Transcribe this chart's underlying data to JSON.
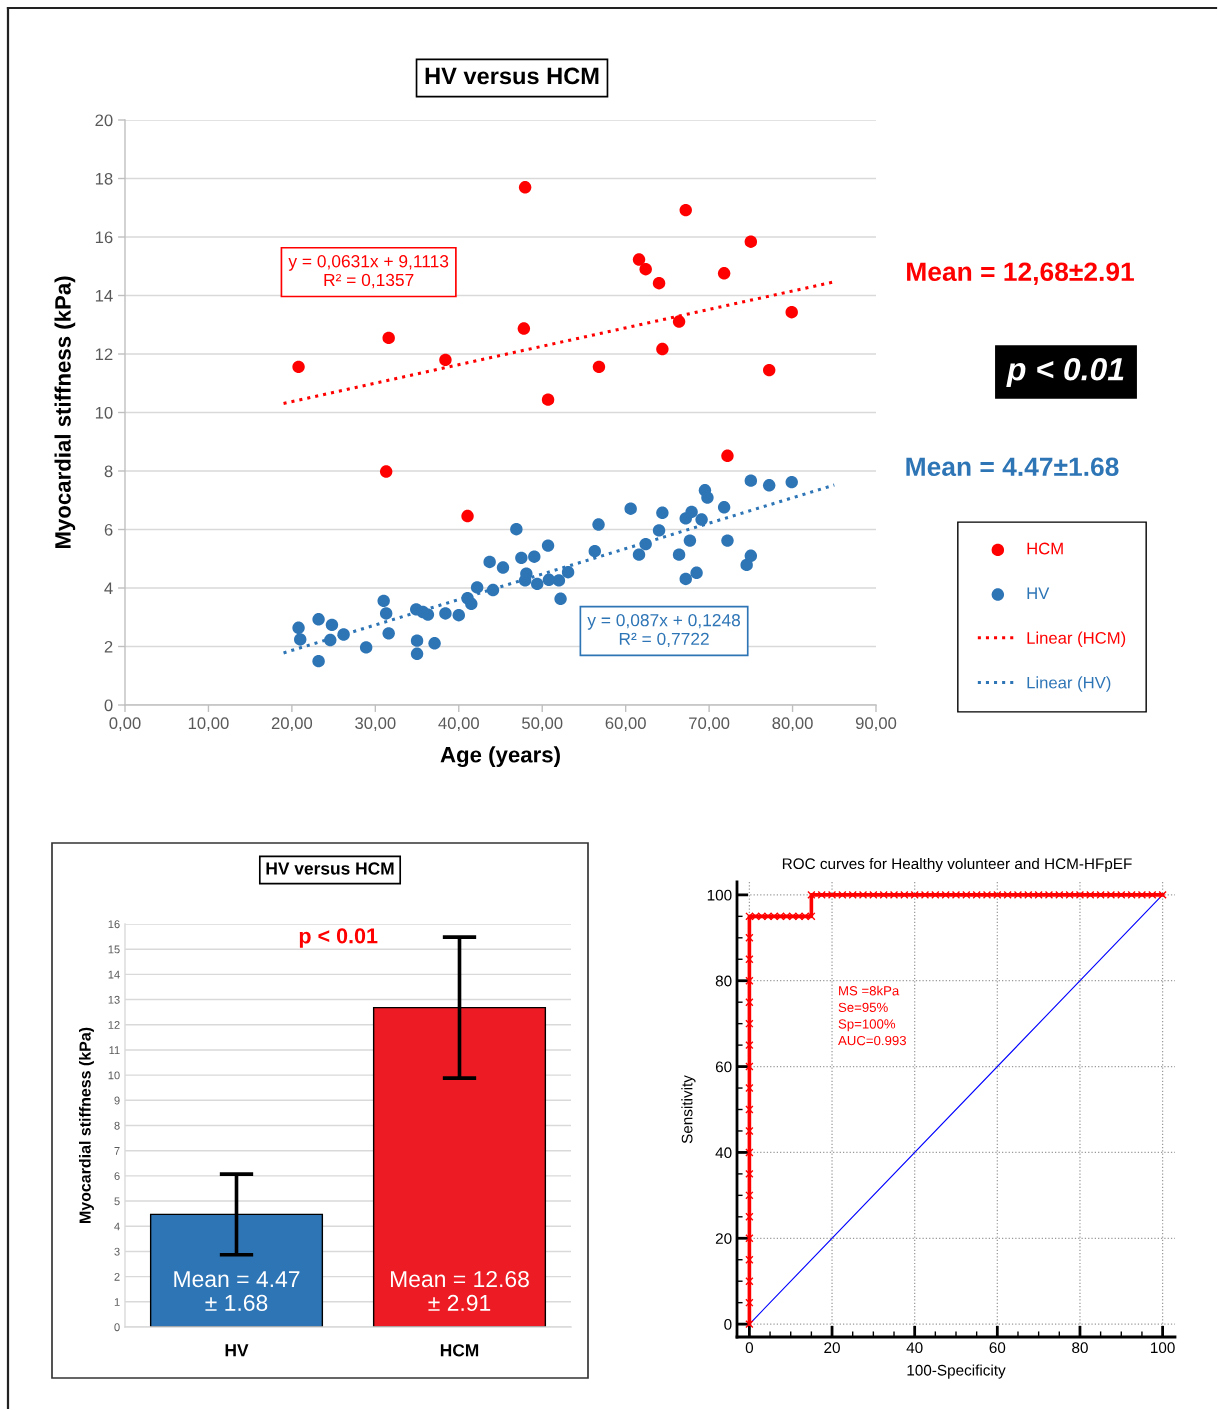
{
  "chart_data": [
    {
      "type": "scatter",
      "title": "HV versus HCM",
      "xlabel": "Age (years)",
      "ylabel": "Myocardial stiffness (kPa)",
      "series": [
        {
          "name": "HCM",
          "type": "scatter",
          "color": "#ff0000",
          "marker": "circle",
          "x": [
            20.8,
            31.6,
            38.4,
            47.95,
            47.8,
            50.7,
            56.8,
            61.6,
            62.4,
            64.0,
            64.4,
            66.4,
            67.2,
            71.8,
            75.0,
            77.2,
            79.9,
            31.3,
            41.05,
            72.2
          ],
          "values": [
            11.56,
            12.55,
            11.8,
            17.7,
            12.87,
            10.44,
            11.56,
            15.23,
            14.9,
            14.42,
            12.17,
            13.11,
            16.92,
            14.76,
            15.84,
            11.45,
            13.43,
            7.98,
            6.46,
            8.52
          ]
        },
        {
          "name": "HV",
          "type": "scatter",
          "color": "#2e75b6",
          "marker": "circle",
          "x": [
            20.8,
            21.0,
            23.2,
            23.2,
            24.6,
            24.8,
            26.2,
            28.9,
            31.0,
            31.3,
            31.6,
            34.9,
            35.0,
            35.0,
            35.7,
            36.3,
            37.1,
            38.4,
            40.0,
            41.05,
            41.5,
            42.2,
            43.7,
            44.1,
            45.3,
            46.9,
            47.5,
            47.95,
            48.1,
            49.05,
            49.4,
            50.7,
            50.8,
            52.0,
            52.2,
            53.1,
            56.3,
            56.75,
            60.6,
            61.6,
            62.4,
            64.0,
            64.4,
            66.4,
            67.2,
            67.2,
            67.7,
            67.9,
            68.5,
            69.1,
            69.5,
            69.8,
            71.8,
            72.2,
            74.5,
            75.0,
            75.0,
            77.2,
            79.9
          ],
          "values": [
            2.64,
            2.24,
            2.93,
            1.5,
            2.22,
            2.74,
            2.41,
            1.97,
            3.56,
            3.13,
            2.45,
            3.27,
            2.2,
            1.75,
            3.18,
            3.09,
            2.11,
            3.13,
            3.07,
            3.65,
            3.46,
            4.02,
            4.89,
            3.93,
            4.7,
            6.01,
            5.03,
            4.26,
            4.49,
            5.07,
            4.14,
            5.45,
            4.28,
            4.26,
            3.63,
            4.54,
            5.26,
            6.17,
            6.71,
            5.14,
            5.5,
            5.97,
            6.57,
            5.14,
            4.31,
            6.38,
            5.62,
            6.6,
            4.52,
            6.34,
            7.34,
            7.09,
            6.76,
            5.62,
            4.79,
            5.1,
            7.67,
            7.51,
            7.62
          ]
        },
        {
          "name": "Linear (HCM)",
          "type": "line",
          "color": "#ff0000",
          "line_style": "dotted",
          "marker": "none",
          "x": [
            19,
            85
          ],
          "values": [
            10.31,
            14.47
          ]
        },
        {
          "name": "Linear (HV)",
          "type": "line",
          "color": "#2e75b6",
          "line_style": "dotted",
          "marker": "none",
          "x": [
            19,
            85
          ],
          "values": [
            1.78,
            7.52
          ]
        }
      ],
      "xlim": [
        0,
        90
      ],
      "xticks": [
        {
          "value": 0,
          "label": "0,00"
        },
        {
          "value": 10,
          "label": "10,00"
        },
        {
          "value": 20,
          "label": "20,00"
        },
        {
          "value": 30,
          "label": "30,00"
        },
        {
          "value": 40,
          "label": "40,00"
        },
        {
          "value": 50,
          "label": "50,00"
        },
        {
          "value": 60,
          "label": "60,00"
        },
        {
          "value": 70,
          "label": "70,00"
        },
        {
          "value": 80,
          "label": "80,00"
        },
        {
          "value": 90,
          "label": "90,00"
        }
      ],
      "ylim": [
        0,
        20
      ],
      "yticks": [
        0,
        2,
        4,
        6,
        8,
        10,
        12,
        14,
        16,
        18,
        20
      ],
      "grid": "y",
      "legend": "right",
      "annotations": [
        "y = 0,0631x + 9,1113\nR² = 0,1357",
        "y = 0,087x + 0,1248\nR² = 0,7722",
        "Mean = 12,68±2.91",
        "p < 0.01",
        "Mean = 4.47±1.68"
      ]
    },
    {
      "type": "bar",
      "title": "HV versus HCM",
      "ylabel": "Myocardial stiffness (kPa)",
      "categories": [
        "HV",
        "HCM"
      ],
      "values": [
        4.47,
        12.68
      ],
      "colors": [
        "#2e75b6",
        "#ed1c24"
      ],
      "errors": [
        1.6,
        2.8
      ],
      "value_labels": [
        "Mean = 4.47\n± 1.68",
        "Mean = 12.68\n± 2.91"
      ],
      "ylim": [
        0,
        16
      ],
      "yticks": [
        0,
        1,
        2,
        3,
        4,
        5,
        6,
        7,
        8,
        9,
        10,
        11,
        12,
        13,
        14,
        15,
        16
      ],
      "grid": "y",
      "annotations": [
        "p < 0.01"
      ]
    },
    {
      "type": "line",
      "title": "ROC curves for Healthy volunteer and HCM-HFpEF",
      "xlabel": "100-Specificity",
      "ylabel": "Sensitivity",
      "series": [
        {
          "color": "#ff0000",
          "marker": "cross",
          "line_style": "solid",
          "x": [
            0,
            0,
            0,
            0,
            0,
            0,
            0,
            0,
            0,
            0,
            0,
            0,
            0,
            0,
            0,
            0,
            0,
            0,
            0,
            0,
            1.5,
            3,
            4.5,
            6,
            7.5,
            9,
            10.5,
            12,
            13.5,
            15,
            15,
            17.5,
            20,
            22.5,
            25,
            27.5,
            30,
            32.5,
            35,
            37.5,
            40,
            42.5,
            45,
            47.5,
            50,
            52.5,
            55,
            57.5,
            60,
            62.5,
            65,
            67.5,
            70,
            72.5,
            75,
            77.5,
            80,
            82.5,
            85,
            87.5,
            90,
            92.5,
            95,
            97.5,
            100
          ],
          "values": [
            0,
            5,
            10,
            15,
            20,
            25,
            30,
            35,
            40,
            45,
            50,
            55,
            60,
            65,
            70,
            75,
            80,
            85,
            90,
            95,
            95,
            95,
            95,
            95,
            95,
            95,
            95,
            95,
            95,
            95,
            100,
            100,
            100,
            100,
            100,
            100,
            100,
            100,
            100,
            100,
            100,
            100,
            100,
            100,
            100,
            100,
            100,
            100,
            100,
            100,
            100,
            100,
            100,
            100,
            100,
            100,
            100,
            100,
            100,
            100,
            100,
            100,
            100,
            100,
            100
          ]
        },
        {
          "color": "#0000ff",
          "marker": "none",
          "line_style": "solid",
          "x": [
            0,
            100
          ],
          "values": [
            0,
            100
          ]
        }
      ],
      "xlim": [
        -3,
        103
      ],
      "xticks": [
        0,
        {
          "value": 5,
          "label": null
        },
        {
          "value": 10,
          "label": null
        },
        {
          "value": 15,
          "label": null
        },
        20,
        {
          "value": 25,
          "label": null
        },
        {
          "value": 30,
          "label": null
        },
        {
          "value": 35,
          "label": null
        },
        40,
        {
          "value": 45,
          "label": null
        },
        {
          "value": 50,
          "label": null
        },
        {
          "value": 55,
          "label": null
        },
        60,
        {
          "value": 65,
          "label": null
        },
        {
          "value": 70,
          "label": null
        },
        {
          "value": 75,
          "label": null
        },
        80,
        {
          "value": 85,
          "label": null
        },
        {
          "value": 90,
          "label": null
        },
        {
          "value": 95,
          "label": null
        },
        100
      ],
      "ylim": [
        -3,
        103
      ],
      "yticks": [
        0,
        {
          "value": 5,
          "label": null
        },
        {
          "value": 10,
          "label": null
        },
        {
          "value": 15,
          "label": null
        },
        20,
        {
          "value": 25,
          "label": null
        },
        {
          "value": 30,
          "label": null
        },
        {
          "value": 35,
          "label": null
        },
        40,
        {
          "value": 45,
          "label": null
        },
        {
          "value": 50,
          "label": null
        },
        {
          "value": 55,
          "label": null
        },
        60,
        {
          "value": 65,
          "label": null
        },
        {
          "value": 70,
          "label": null
        },
        {
          "value": 75,
          "label": null
        },
        80,
        {
          "value": 85,
          "label": null
        },
        {
          "value": 90,
          "label": null
        },
        {
          "value": 95,
          "label": null
        },
        100
      ],
      "grid": true,
      "annotations": [
        "MS =8kPa\nSe=95%\nSp=100%\nAUC=0.993"
      ]
    }
  ]
}
